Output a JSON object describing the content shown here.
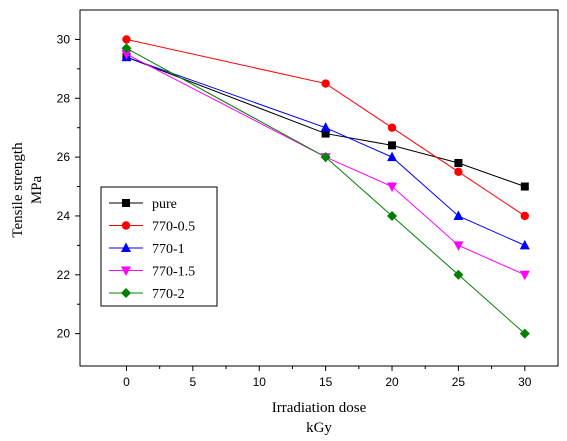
{
  "chart_data": {
    "type": "line",
    "xlabel_line1": "Irradiation dose",
    "xlabel_line2": "kGy",
    "ylabel_line1": "Tensile strength",
    "ylabel_line2": "MPa",
    "xlim": [
      -3.5,
      32.5
    ],
    "ylim": [
      18.9,
      31.0
    ],
    "x_ticks": [
      0,
      5,
      10,
      15,
      20,
      25,
      30
    ],
    "y_ticks": [
      20,
      22,
      24,
      26,
      28,
      30
    ],
    "legend_position": "left",
    "x": [
      0,
      15,
      20,
      25,
      30
    ],
    "series": [
      {
        "name": "pure",
        "color": "#000000",
        "marker": "square",
        "values": [
          29.4,
          26.8,
          26.4,
          25.8,
          25.0
        ]
      },
      {
        "name": "770-0.5",
        "color": "#ff0000",
        "marker": "circle",
        "values": [
          30.0,
          28.5,
          27.0,
          25.5,
          24.0
        ]
      },
      {
        "name": "770-1",
        "color": "#0000ff",
        "marker": "triangle-up",
        "values": [
          29.4,
          27.0,
          26.0,
          24.0,
          23.0
        ]
      },
      {
        "name": "770-1.5",
        "color": "#ff00ff",
        "marker": "triangle-down",
        "values": [
          29.5,
          26.0,
          25.0,
          23.0,
          22.0
        ]
      },
      {
        "name": "770-2",
        "color": "#008000",
        "marker": "diamond",
        "values": [
          29.7,
          26.0,
          24.0,
          22.0,
          20.0
        ]
      }
    ]
  }
}
